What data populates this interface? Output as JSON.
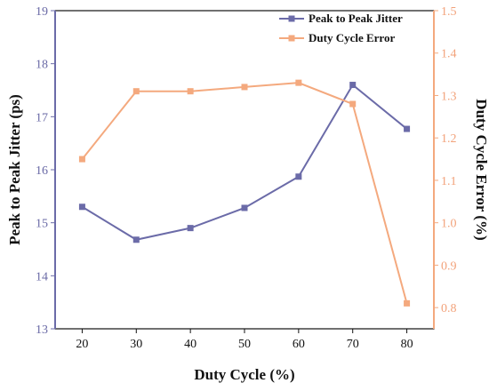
{
  "chart_data": {
    "type": "line",
    "xlabel": "Duty Cycle (%)",
    "ylabel_left": "Peak to Peak Jitter (ps)",
    "ylabel_right": "Duty Cycle Error (%)",
    "x": [
      20,
      30,
      40,
      50,
      60,
      70,
      80
    ],
    "xlim": [
      15,
      85
    ],
    "ylim_left": [
      13,
      19
    ],
    "ylim_right": [
      0.75,
      1.5
    ],
    "x_ticks": [
      "20",
      "30",
      "40",
      "50",
      "60",
      "70",
      "80"
    ],
    "y_ticks_left": [
      "13",
      "14",
      "15",
      "16",
      "17",
      "18",
      "19"
    ],
    "y_ticks_right": [
      "0.8",
      "0.9",
      "1.0",
      "1.1",
      "1.2",
      "1.3",
      "1.4",
      "1.5"
    ],
    "grid": false,
    "legend_position": "top-right",
    "series": [
      {
        "name": "Peak to Peak Jitter",
        "axis": "left",
        "color": "#6b6ba8",
        "marker": "square",
        "values": [
          15.3,
          14.68,
          14.9,
          15.28,
          15.87,
          17.6,
          16.77
        ]
      },
      {
        "name": "Duty Cycle Error",
        "axis": "right",
        "color": "#f4a97e",
        "marker": "square",
        "values": [
          1.15,
          1.31,
          1.31,
          1.32,
          1.33,
          1.28,
          0.81
        ]
      }
    ]
  }
}
